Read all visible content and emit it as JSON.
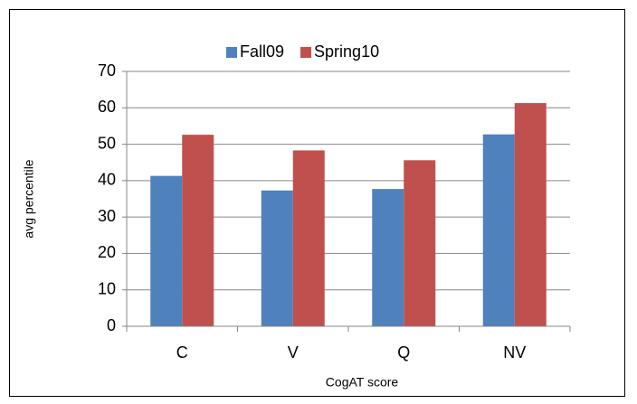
{
  "chart_data": {
    "type": "bar",
    "categories": [
      "C",
      "V",
      "Q",
      "NV"
    ],
    "series": [
      {
        "name": "Fall09",
        "color": "#4f81bd",
        "values": [
          41.3,
          37.3,
          37.7,
          52.7
        ]
      },
      {
        "name": "Spring10",
        "color": "#c0504d",
        "values": [
          52.6,
          48.3,
          45.6,
          61.3
        ]
      }
    ],
    "xlabel": "CogAT score",
    "ylabel": "avg percentile",
    "ylim": [
      0,
      70
    ],
    "yticks": [
      0,
      10,
      20,
      30,
      40,
      50,
      60,
      70
    ],
    "grid": true,
    "legend": "top"
  }
}
